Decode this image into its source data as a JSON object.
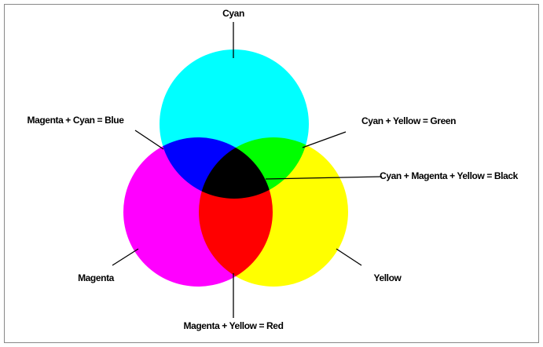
{
  "labels": {
    "cyan": "Cyan",
    "magenta_cyan": "Magenta + Cyan = Blue",
    "cyan_yellow": "Cyan + Yellow = Green",
    "all": "Cyan + Magenta + Yellow = Black",
    "magenta": "Magenta",
    "yellow": "Yellow",
    "magenta_yellow": "Magenta + Yellow = Red"
  }
}
